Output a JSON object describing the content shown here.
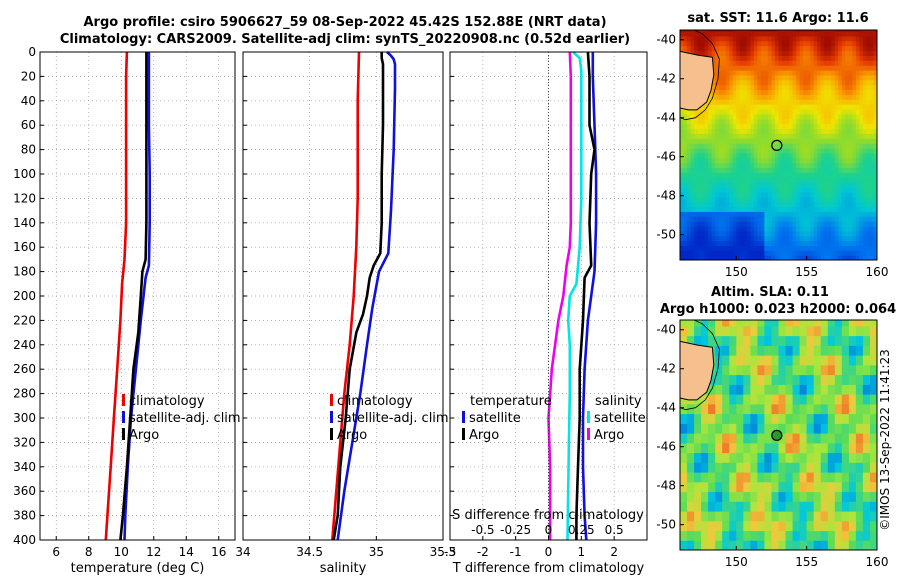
{
  "header": {
    "title_line1": "Argo profile: csiro 5906627_59 08-Sep-2022 45.42S 152.88E (NRT data)",
    "title_line2": "Climatology: CARS2009. Satellite-adj clim: synTS_20220908.nc (0.52d earlier)"
  },
  "timestamp": "©IMOS 13-Sep-2022 11:41:23",
  "colors": {
    "climatology": "#ee0000",
    "satellite": "#1010dd",
    "argo": "#000000",
    "sat_salinity": "#00e5e5",
    "argo_salinity": "#ee00ee"
  },
  "chart_data": [
    {
      "type": "line",
      "title": "",
      "xlabel": "temperature (deg C)",
      "ylabel": "",
      "xlim": [
        5,
        17
      ],
      "ylim": [
        400,
        0
      ],
      "xticks": [
        6,
        8,
        10,
        12,
        14,
        16
      ],
      "yticks": [
        0,
        20,
        40,
        60,
        80,
        100,
        120,
        140,
        160,
        180,
        200,
        220,
        240,
        260,
        280,
        300,
        320,
        340,
        360,
        380,
        400
      ],
      "legend": [
        "climatology",
        "satellite-adj. clim",
        "Argo"
      ],
      "series": [
        {
          "name": "climatology",
          "color": "#ee0000",
          "depth": [
            0,
            20,
            60,
            100,
            140,
            170,
            190,
            220,
            260,
            300,
            340,
            380,
            400
          ],
          "values": [
            10.35,
            10.3,
            10.3,
            10.3,
            10.3,
            10.2,
            10.05,
            9.95,
            9.75,
            9.55,
            9.35,
            9.15,
            9.05
          ]
        },
        {
          "name": "satellite-adj. clim",
          "color": "#1010dd",
          "depth": [
            0,
            20,
            60,
            100,
            140,
            175,
            185,
            220,
            260,
            300,
            340,
            380,
            400
          ],
          "values": [
            11.7,
            11.7,
            11.7,
            11.75,
            11.75,
            11.7,
            11.5,
            11.2,
            10.9,
            10.6,
            10.4,
            10.25,
            10.2
          ]
        },
        {
          "name": "Argo",
          "color": "#000000",
          "depth": [
            0,
            20,
            60,
            100,
            140,
            170,
            180,
            200,
            230,
            260,
            300,
            340,
            380,
            400
          ],
          "values": [
            11.55,
            11.55,
            11.55,
            11.55,
            11.55,
            11.5,
            11.3,
            11.2,
            11.05,
            10.75,
            10.55,
            10.35,
            10.1,
            9.95
          ]
        }
      ]
    },
    {
      "type": "line",
      "xlabel": "salinity",
      "xlim": [
        34,
        35.5
      ],
      "ylim": [
        400,
        0
      ],
      "xticks": [
        34,
        34.5,
        35,
        35.5
      ],
      "yticks": [
        0,
        20,
        40,
        60,
        80,
        100,
        120,
        140,
        160,
        180,
        200,
        220,
        240,
        260,
        280,
        300,
        320,
        340,
        360,
        380,
        400
      ],
      "legend": [
        "climatology",
        "satellite-adj. clim",
        "Argo"
      ],
      "series": [
        {
          "name": "climatology",
          "color": "#ee0000",
          "depth": [
            0,
            40,
            80,
            120,
            160,
            200,
            240,
            280,
            320,
            360,
            400
          ],
          "values": [
            34.87,
            34.86,
            34.86,
            34.86,
            34.85,
            34.83,
            34.8,
            34.76,
            34.73,
            34.7,
            34.67
          ]
        },
        {
          "name": "satellite-adj. clim",
          "color": "#1010dd",
          "depth": [
            0,
            3,
            6,
            10,
            30,
            80,
            130,
            165,
            180,
            210,
            240,
            280,
            320,
            360,
            400
          ],
          "values": [
            35.08,
            35.11,
            35.13,
            35.14,
            35.14,
            35.13,
            35.11,
            35.09,
            35.02,
            34.97,
            34.93,
            34.88,
            34.82,
            34.76,
            34.71
          ]
        },
        {
          "name": "Argo",
          "color": "#000000",
          "depth": [
            0,
            5,
            10,
            20,
            60,
            100,
            140,
            165,
            175,
            185,
            200,
            215,
            230,
            260,
            300,
            340,
            380,
            400
          ],
          "values": [
            35.04,
            35.04,
            35.05,
            35.05,
            35.05,
            35.04,
            35.04,
            35.03,
            34.98,
            34.95,
            34.93,
            34.9,
            34.85,
            34.8,
            34.77,
            34.73,
            34.71,
            34.68
          ]
        }
      ]
    },
    {
      "type": "line",
      "xlabel": "T difference from climatology",
      "xlim": [
        -3,
        3
      ],
      "ylim": [
        400,
        0
      ],
      "xticks": [
        -3,
        -2,
        -1,
        0,
        1,
        2,
        3
      ],
      "xticklabels": [
        "-3",
        "-2",
        "-1",
        "0",
        "1",
        "2",
        ""
      ],
      "secondary_xlabel": "S difference from climatology",
      "secondary_xlim": [
        -0.75,
        0.75
      ],
      "secondary_xticks": [
        -0.5,
        -0.25,
        0,
        0.25,
        0.5
      ],
      "yticks": [
        0,
        20,
        40,
        60,
        80,
        100,
        120,
        140,
        160,
        180,
        200,
        220,
        240,
        260,
        280,
        300,
        320,
        340,
        360,
        380,
        400
      ],
      "legend_temperature": {
        "title": "temperature",
        "items": [
          "satellite",
          "Argo"
        ]
      },
      "legend_salinity": {
        "title": "salinity",
        "items": [
          "satellite",
          "Argo"
        ]
      },
      "series": [
        {
          "name": "temperature satellite",
          "color": "#1010dd",
          "depth": [
            0,
            20,
            60,
            100,
            140,
            180,
            220,
            260,
            300,
            340,
            380,
            400
          ],
          "values": [
            1.35,
            1.35,
            1.4,
            1.45,
            1.45,
            1.4,
            1.2,
            1.1,
            1.05,
            1.05,
            1.1,
            1.15
          ]
        },
        {
          "name": "temperature Argo",
          "color": "#000000",
          "depth": [
            0,
            20,
            60,
            80,
            100,
            140,
            175,
            185,
            220,
            260,
            300,
            340,
            380,
            400
          ],
          "values": [
            1.2,
            1.25,
            1.25,
            1.4,
            1.3,
            1.25,
            1.3,
            1.1,
            1.05,
            0.95,
            0.95,
            0.9,
            0.85,
            0.85
          ]
        },
        {
          "name": "salinity satellite",
          "color": "#00e5e5",
          "depth": [
            0,
            5,
            15,
            40,
            80,
            120,
            160,
            190,
            200,
            220,
            240,
            280,
            320,
            360,
            400
          ],
          "values": [
            0.75,
            0.95,
            1.0,
            1.0,
            1.0,
            1.0,
            0.95,
            0.85,
            0.65,
            0.6,
            0.65,
            0.65,
            0.62,
            0.6,
            0.58
          ]
        },
        {
          "name": "salinity Argo",
          "color": "#ee00ee",
          "depth": [
            0,
            20,
            60,
            100,
            140,
            160,
            175,
            200,
            220,
            260,
            300,
            340,
            380,
            400
          ],
          "values": [
            0.65,
            0.68,
            0.68,
            0.68,
            0.68,
            0.65,
            0.55,
            0.45,
            0.3,
            0.1,
            0.0,
            0.05,
            0.05,
            0.05
          ]
        }
      ]
    },
    {
      "type": "heatmap",
      "title": "sat. SST: 11.6 Argo: 11.6",
      "xlim": [
        146,
        160
      ],
      "ylim": [
        -51.3,
        -39.5
      ],
      "xticks": [
        150,
        155,
        160
      ],
      "yticks": [
        -40,
        -42,
        -44,
        -46,
        -48,
        -50
      ],
      "marker": {
        "lon": 152.88,
        "lat": -45.42
      }
    },
    {
      "type": "heatmap",
      "title_line1": "Altim. SLA: 0.11",
      "title_line2": "Argo h1000: 0.023 h2000: 0.064",
      "xlim": [
        146,
        160
      ],
      "ylim": [
        -51.3,
        -39.5
      ],
      "xticks": [
        150,
        155,
        160
      ],
      "yticks": [
        -40,
        -42,
        -44,
        -46,
        -48,
        -50
      ],
      "marker": {
        "lon": 152.88,
        "lat": -45.42
      }
    }
  ]
}
